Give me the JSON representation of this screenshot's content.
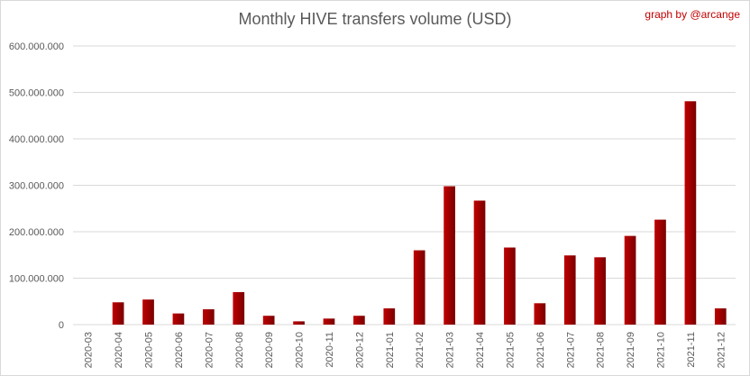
{
  "chart_data": {
    "type": "bar",
    "title": "Monthly HIVE transfers volume (USD)",
    "credit": "graph by @arcange",
    "xlabel": "",
    "ylabel": "",
    "ylim": [
      0,
      600000000
    ],
    "yticks": [
      0,
      100000000,
      200000000,
      300000000,
      400000000,
      500000000,
      600000000
    ],
    "ytick_labels": [
      "0",
      "100.000.000",
      "200.000.000",
      "300.000.000",
      "400.000.000",
      "500.000.000",
      "600.000.000"
    ],
    "grid": true,
    "legend": "none",
    "categories": [
      "2020-03",
      "2020-04",
      "2020-05",
      "2020-06",
      "2020-07",
      "2020-08",
      "2020-09",
      "2020-10",
      "2020-11",
      "2020-12",
      "2021-01",
      "2021-02",
      "2021-03",
      "2021-04",
      "2021-05",
      "2021-06",
      "2021-07",
      "2021-08",
      "2021-09",
      "2021-10",
      "2021-11",
      "2021-12"
    ],
    "values": [
      0,
      48000000,
      54000000,
      24000000,
      33000000,
      70000000,
      19000000,
      7000000,
      13000000,
      19000000,
      35000000,
      160000000,
      298000000,
      267000000,
      166000000,
      46000000,
      149000000,
      145000000,
      191000000,
      226000000,
      481000000,
      35000000
    ],
    "bar_color": "#c00000",
    "bar_color_dark": "#7a0000"
  }
}
